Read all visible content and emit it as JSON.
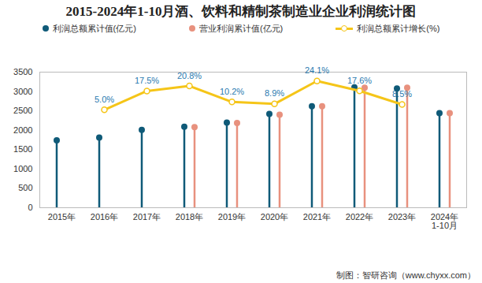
{
  "chart_data": {
    "type": "bar",
    "title": "2015-2024年1-10月酒、饮料和精制茶制造业企业利润统计图",
    "categories": [
      "2015年",
      "2016年",
      "2017年",
      "2018年",
      "2019年",
      "2020年",
      "2021年",
      "2022年",
      "2023年",
      "2024年\n1-10月"
    ],
    "series": [
      {
        "name": "利润总额累计值(亿元)",
        "type": "bar",
        "marker": "circle",
        "color": "#0f5a78",
        "values": [
          1740,
          1810,
          2010,
          2090,
          2200,
          2420,
          2620,
          3110,
          3080,
          2440
        ]
      },
      {
        "name": "营业利润累计值(亿元)",
        "type": "bar",
        "marker": "circle",
        "color": "#e8917e",
        "values": [
          null,
          null,
          null,
          2080,
          2190,
          2400,
          2620,
          3100,
          3100,
          2440
        ]
      },
      {
        "name": "利润总额累计增长(%)",
        "type": "line",
        "marker": "circle",
        "color": "#f5c518",
        "axis": "y2",
        "data_labels": true,
        "values": [
          null,
          5.0,
          17.5,
          20.8,
          10.2,
          8.9,
          24.1,
          17.6,
          8.5,
          null
        ],
        "value_labels": [
          null,
          "5.0%",
          "17.5%",
          "20.8%",
          "10.2%",
          "8.9%",
          "24.1%",
          "17.6%",
          "8.5%",
          null
        ]
      }
    ],
    "ylim": [
      0,
      3500
    ],
    "yticks": [
      0,
      500,
      1000,
      1500,
      2000,
      2500,
      3000,
      3500
    ],
    "y2lim": [
      -60,
      30
    ],
    "y2ticks": [],
    "grid": false,
    "legend": "top",
    "source": "制图：智研咨询（www.chyxx.com）"
  }
}
